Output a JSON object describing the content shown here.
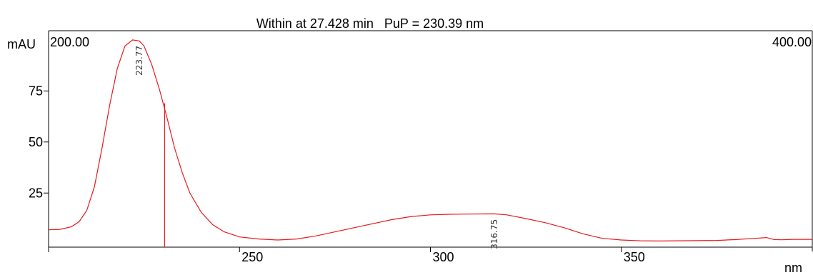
{
  "chart_data": {
    "type": "line",
    "title": "Within at 27.428 min   PuP = 230.39 nm",
    "xlabel": "nm",
    "ylabel": "mAU",
    "range_left_label": "200.00",
    "range_right_label": "400.00",
    "xlim": [
      200,
      400
    ],
    "ylim": [
      -1.5,
      104.5
    ],
    "x_ticks": [
      {
        "value": 250,
        "label": "250"
      },
      {
        "value": 300,
        "label": "300"
      },
      {
        "value": 350,
        "label": "350"
      }
    ],
    "y_ticks": [
      {
        "value": 25,
        "label": "25"
      },
      {
        "value": 50,
        "label": "50"
      },
      {
        "value": 75,
        "label": "75"
      }
    ],
    "peak_labels": [
      {
        "x": 223.77,
        "y": 100.0,
        "label": "223.77"
      },
      {
        "x": 316.75,
        "y": 15.0,
        "label": "316.75"
      }
    ],
    "marker": {
      "x": 230.39,
      "y": 69.0
    },
    "grid": false,
    "line_color": "#e8191e",
    "series": [
      {
        "x": [
          200,
          203,
          206,
          208,
          210,
          212,
          214,
          216,
          218,
          220,
          222,
          223.77,
          225,
          227,
          229,
          231,
          233,
          235,
          237,
          240,
          243,
          246,
          250,
          255,
          260,
          265,
          270,
          275,
          280,
          285,
          290,
          295,
          300,
          305,
          310,
          316.75,
          320,
          325,
          330,
          335,
          340,
          345,
          350,
          355,
          360,
          365,
          370,
          375,
          380,
          385,
          388,
          390,
          392,
          395,
          400
        ],
        "y": [
          7,
          7.2,
          8.5,
          11,
          16.5,
          28,
          47,
          68,
          86,
          97,
          100,
          99.5,
          97,
          88,
          76,
          62,
          47,
          35,
          25,
          15.5,
          9.5,
          6,
          3.5,
          2.5,
          2,
          2.5,
          4,
          6,
          8,
          10,
          12,
          13.5,
          14.3,
          14.6,
          14.7,
          14.8,
          14.3,
          12.5,
          10.5,
          8,
          5,
          2.8,
          2,
          1.6,
          1.5,
          1.6,
          1.7,
          1.8,
          2.2,
          2.8,
          3.2,
          2.2,
          2.1,
          2.3,
          2.3
        ]
      }
    ]
  }
}
